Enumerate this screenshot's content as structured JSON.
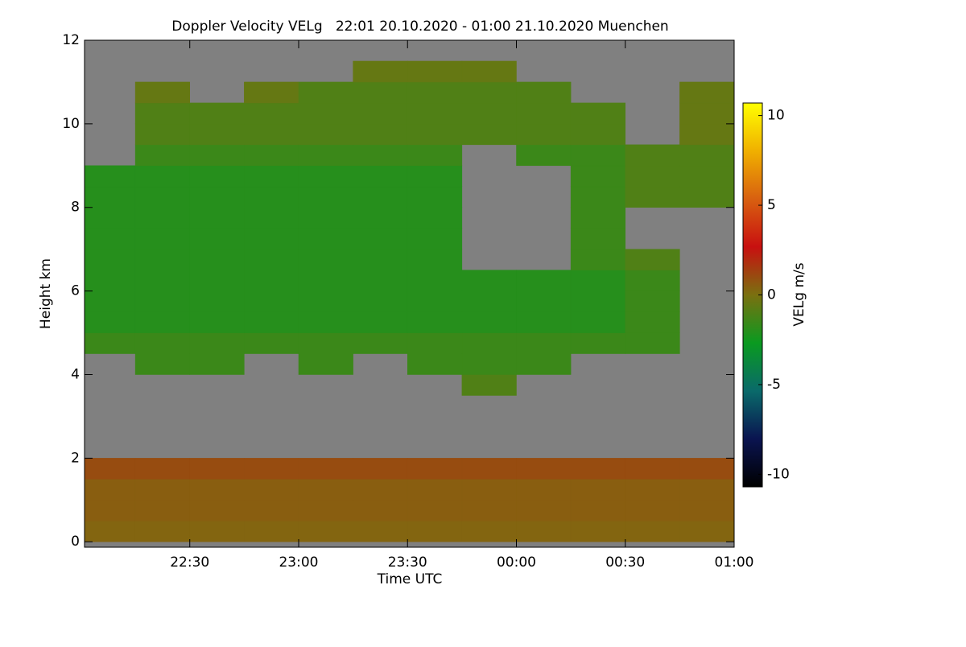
{
  "chart_data": {
    "type": "heatmap",
    "title": "Doppler Velocity VELg   22:01 20.10.2020 - 01:00 21.10.2020 Muenchen",
    "x_label": "Time UTC",
    "y_label": "Height km",
    "colorbar_label": "VELg m/s",
    "xlim": [
      22.0167,
      25.0
    ],
    "ylim": [
      -0.13,
      12
    ],
    "zlim": [
      -10.7,
      10.7
    ],
    "xticks": [
      {
        "value": 22.5,
        "label": "22:30"
      },
      {
        "value": 23.0,
        "label": "23:00"
      },
      {
        "value": 23.5,
        "label": "23:30"
      },
      {
        "value": 24.0,
        "label": "00:00"
      },
      {
        "value": 24.5,
        "label": "00:30"
      },
      {
        "value": 25.0,
        "label": "01:00"
      }
    ],
    "yticks": [
      0,
      2,
      4,
      6,
      8,
      10,
      12
    ],
    "cticks": [
      -10,
      -5,
      0,
      5,
      10
    ],
    "background": "#808080",
    "colormap": [
      "#000000",
      "#0a1450",
      "#0a6a6a",
      "#0a9a20",
      "#7a7010",
      "#c81010",
      "#d86010",
      "#f0b000",
      "#ffff00"
    ],
    "x_edges": [
      22.0167,
      22.25,
      22.5,
      22.75,
      23.0,
      23.25,
      23.5,
      23.75,
      24.0,
      24.25,
      24.5,
      24.75,
      25.0
    ],
    "y_edges": [
      0,
      0.5,
      1,
      1.5,
      2,
      2.5,
      3,
      3.5,
      4,
      4.5,
      5,
      5.5,
      6,
      6.5,
      7,
      7.5,
      8,
      8.5,
      9,
      9.5,
      10,
      10.5,
      11,
      11.5,
      12
    ],
    "z": [
      [
        0.3,
        0.3,
        0.3,
        0.3,
        0.3,
        0.3,
        0.3,
        0.3,
        0.3,
        0.3,
        0.3,
        0.3
      ],
      [
        0.5,
        0.5,
        0.5,
        0.5,
        0.5,
        0.5,
        0.5,
        0.5,
        0.5,
        0.5,
        0.5,
        0.5
      ],
      [
        0.5,
        0.5,
        0.5,
        0.5,
        0.5,
        0.5,
        0.5,
        0.5,
        0.5,
        0.5,
        0.5,
        0.5
      ],
      [
        1,
        1,
        1,
        1,
        1,
        1,
        1,
        1,
        1,
        1,
        1,
        1
      ],
      [
        null,
        null,
        null,
        null,
        null,
        null,
        null,
        null,
        null,
        null,
        null,
        null
      ],
      [
        null,
        null,
        null,
        null,
        null,
        null,
        null,
        null,
        null,
        null,
        null,
        null
      ],
      [
        null,
        null,
        null,
        null,
        null,
        null,
        null,
        null,
        null,
        null,
        null,
        null
      ],
      [
        null,
        null,
        null,
        null,
        null,
        null,
        null,
        -1,
        null,
        null,
        null,
        null
      ],
      [
        null,
        -1.5,
        -1.5,
        null,
        -1.5,
        null,
        -1.5,
        -1.5,
        -1.5,
        null,
        null,
        null
      ],
      [
        -1.5,
        -1.5,
        -1.5,
        -1.5,
        -1.5,
        -1.5,
        -1.5,
        -1.5,
        -1.5,
        -1.5,
        -1.5,
        null
      ],
      [
        -2,
        -2,
        -2,
        -2,
        -2,
        -2,
        -2,
        -2,
        -2,
        -2,
        -1.5,
        null
      ],
      [
        -2,
        -2,
        -2,
        -2,
        -2,
        -2,
        -2,
        -2,
        -2,
        -2,
        -1.5,
        null
      ],
      [
        -2,
        -2,
        -2,
        -2,
        -2,
        -2,
        -2,
        -2,
        -2,
        -2,
        -1.5,
        null
      ],
      [
        -2,
        -2,
        -2,
        -2,
        -2,
        -2,
        -2,
        null,
        null,
        -1.5,
        -1,
        null
      ],
      [
        -2,
        -2,
        -2,
        -2,
        -2,
        -2,
        -2,
        null,
        null,
        -1.5,
        null,
        null
      ],
      [
        -2,
        -2,
        -2,
        -2,
        -2,
        -2,
        -2,
        null,
        null,
        -1.5,
        null,
        null
      ],
      [
        -2,
        -2,
        -2,
        -2,
        -2,
        -2,
        -2,
        null,
        null,
        -1.5,
        -1,
        -1
      ],
      [
        -2,
        -2,
        -2,
        -2,
        -2,
        -2,
        -2,
        null,
        null,
        -1.5,
        -1,
        -1
      ],
      [
        null,
        -1.5,
        -1.5,
        -1.5,
        -1.5,
        -1.5,
        -1.5,
        null,
        -1.5,
        -1.5,
        -1,
        -1
      ],
      [
        null,
        -1,
        -1,
        -1,
        -1,
        -1,
        -1,
        -1,
        -1,
        -1,
        null,
        -0.5
      ],
      [
        null,
        -1,
        -1,
        -1,
        -1,
        -1,
        -1,
        -1,
        -1,
        -1,
        null,
        -0.5
      ],
      [
        null,
        -0.5,
        null,
        -0.5,
        -1,
        -1,
        -1,
        -1,
        -1,
        null,
        null,
        -0.5
      ],
      [
        null,
        null,
        null,
        null,
        null,
        -0.5,
        -0.5,
        -0.5,
        null,
        null,
        null,
        null
      ],
      [
        null,
        null,
        null,
        null,
        null,
        null,
        null,
        null,
        null,
        null,
        null,
        null
      ]
    ]
  }
}
